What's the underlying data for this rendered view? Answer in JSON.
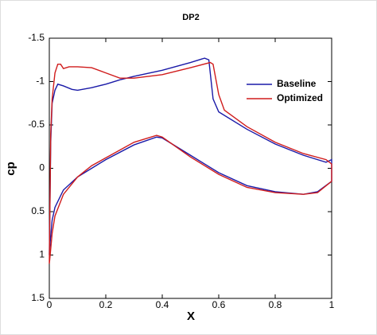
{
  "chart_data": {
    "type": "line",
    "title": "DP2",
    "x_label": "X",
    "y_label": "cp",
    "xlim": [
      0,
      1
    ],
    "xticks": [
      0,
      0.2,
      0.4,
      0.6,
      0.8,
      1
    ],
    "ylim": [
      1.5,
      -1.5
    ],
    "yticks": [
      -1.5,
      -1,
      -0.5,
      0,
      0.5,
      1,
      1.5
    ],
    "legend": "right",
    "series": [
      {
        "name": "Baseline",
        "color": "#1a1aa8",
        "x": [
          0,
          0.005,
          0.01,
          0.02,
          0.03,
          0.05,
          0.08,
          0.1,
          0.15,
          0.2,
          0.25,
          0.3,
          0.4,
          0.5,
          0.55,
          0.565,
          0.58,
          0.6,
          0.7,
          0.8,
          0.9,
          0.98,
          1,
          1,
          0.95,
          0.9,
          0.8,
          0.7,
          0.6,
          0.55,
          0.5,
          0.4,
          0.38,
          0.3,
          0.2,
          0.15,
          0.1,
          0.05,
          0.02,
          0.01,
          0.003,
          0
        ],
        "values": [
          1.0,
          -0.3,
          -0.75,
          -0.9,
          -0.97,
          -0.95,
          -0.91,
          -0.9,
          -0.93,
          -0.97,
          -1.02,
          -1.06,
          -1.13,
          -1.22,
          -1.27,
          -1.25,
          -0.8,
          -0.65,
          -0.45,
          -0.28,
          -0.15,
          -0.07,
          -0.1,
          0.15,
          0.27,
          0.3,
          0.27,
          0.2,
          0.05,
          -0.05,
          -0.15,
          -0.35,
          -0.36,
          -0.27,
          -0.1,
          0.0,
          0.1,
          0.25,
          0.45,
          0.6,
          0.85,
          1.0
        ]
      },
      {
        "name": "Optimized",
        "color": "#d01c1c",
        "x": [
          0,
          0.005,
          0.01,
          0.02,
          0.03,
          0.04,
          0.05,
          0.07,
          0.1,
          0.15,
          0.2,
          0.25,
          0.3,
          0.4,
          0.5,
          0.57,
          0.58,
          0.6,
          0.62,
          0.7,
          0.8,
          0.9,
          0.98,
          1,
          1,
          0.95,
          0.9,
          0.8,
          0.7,
          0.6,
          0.5,
          0.4,
          0.38,
          0.3,
          0.2,
          0.15,
          0.1,
          0.05,
          0.02,
          0.01,
          0.003,
          0
        ],
        "values": [
          1.1,
          -0.4,
          -0.8,
          -1.1,
          -1.2,
          -1.2,
          -1.15,
          -1.17,
          -1.17,
          -1.16,
          -1.1,
          -1.04,
          -1.04,
          -1.08,
          -1.16,
          -1.22,
          -1.2,
          -0.85,
          -0.67,
          -0.48,
          -0.3,
          -0.17,
          -0.1,
          -0.05,
          0.15,
          0.28,
          0.3,
          0.28,
          0.22,
          0.07,
          -0.13,
          -0.36,
          -0.38,
          -0.3,
          -0.12,
          -0.03,
          0.1,
          0.3,
          0.55,
          0.75,
          1.0,
          1.1
        ]
      }
    ]
  }
}
